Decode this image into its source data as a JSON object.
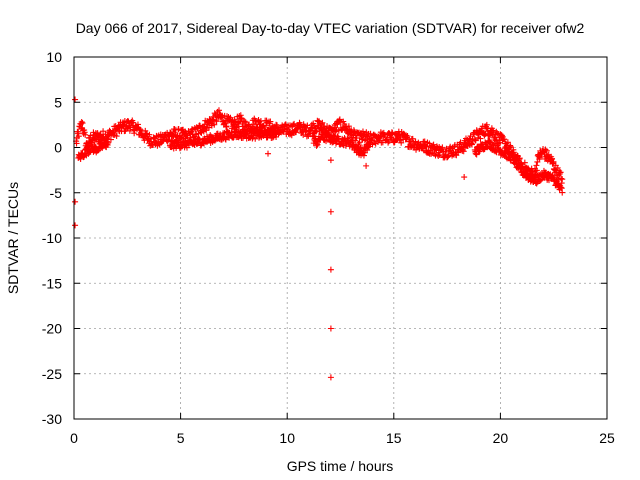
{
  "chart_data": {
    "type": "scatter",
    "title": "Day 066 of 2017, Sidereal Day-to-day VTEC variation (SDTVAR) for receiver ofw2",
    "xlabel": "GPS time / hours",
    "ylabel": "SDTVAR / TECUs",
    "xlim": [
      0,
      25
    ],
    "ylim": [
      -30,
      10
    ],
    "xticks": [
      "0",
      "5",
      "10",
      "15",
      "20",
      "25"
    ],
    "yticks": [
      "10",
      "5",
      "0",
      "-5",
      "-10",
      "-15",
      "-20",
      "-25",
      "-30"
    ],
    "grid": true,
    "marker": "plus",
    "series_color": "#ff0000",
    "series": [
      {
        "name": "SDTVAR",
        "main_trace": [
          [
            0.1,
            0.5
          ],
          [
            0.2,
            1.5
          ],
          [
            0.3,
            2.2
          ],
          [
            0.4,
            2.6
          ],
          [
            0.5,
            1.2
          ],
          [
            0.6,
            0.2
          ],
          [
            0.7,
            0.5
          ],
          [
            0.8,
            1.0
          ],
          [
            1.0,
            1.1
          ],
          [
            1.3,
            1.2
          ],
          [
            1.6,
            1.3
          ],
          [
            2.0,
            1.9
          ],
          [
            2.3,
            2.3
          ],
          [
            2.6,
            2.5
          ],
          [
            3.0,
            2.0
          ],
          [
            3.3,
            1.3
          ],
          [
            3.6,
            0.8
          ],
          [
            4.0,
            0.7
          ],
          [
            4.3,
            1.2
          ],
          [
            4.6,
            1.5
          ],
          [
            5.0,
            1.4
          ],
          [
            5.3,
            1.2
          ],
          [
            5.6,
            1.5
          ],
          [
            6.0,
            2.2
          ],
          [
            6.4,
            2.8
          ],
          [
            6.8,
            3.5
          ],
          [
            7.2,
            2.8
          ],
          [
            7.5,
            2.5
          ],
          [
            7.8,
            3.0
          ],
          [
            8.1,
            2.2
          ],
          [
            8.5,
            2.7
          ],
          [
            8.9,
            2.5
          ],
          [
            9.3,
            2.2
          ],
          [
            9.7,
            1.8
          ],
          [
            10.0,
            2.0
          ],
          [
            10.3,
            2.0
          ],
          [
            10.6,
            2.2
          ],
          [
            10.9,
            1.8
          ],
          [
            11.2,
            2.2
          ],
          [
            11.5,
            2.4
          ],
          [
            11.8,
            2.0
          ],
          [
            12.1,
            1.6
          ],
          [
            12.4,
            2.5
          ],
          [
            12.7,
            2.3
          ],
          [
            13.0,
            1.5
          ],
          [
            13.3,
            1.0
          ],
          [
            13.6,
            1.2
          ],
          [
            14.0,
            0.8
          ],
          [
            14.3,
            1.2
          ],
          [
            14.6,
            1.0
          ],
          [
            15.0,
            1.1
          ],
          [
            15.3,
            1.2
          ],
          [
            15.6,
            0.8
          ],
          [
            16.0,
            0.4
          ],
          [
            16.3,
            0.2
          ],
          [
            16.6,
            0.0
          ],
          [
            17.0,
            -0.3
          ],
          [
            17.3,
            -0.5
          ],
          [
            17.6,
            -0.4
          ],
          [
            18.0,
            -0.2
          ],
          [
            18.3,
            0.2
          ],
          [
            18.6,
            0.8
          ],
          [
            19.0,
            1.5
          ],
          [
            19.3,
            2.0
          ],
          [
            19.6,
            1.8
          ],
          [
            19.9,
            1.0
          ],
          [
            20.2,
            0.5
          ],
          [
            20.5,
            -0.5
          ],
          [
            20.8,
            -1.5
          ],
          [
            21.1,
            -2.2
          ],
          [
            21.4,
            -2.8
          ],
          [
            21.6,
            -3.0
          ],
          [
            21.8,
            -1.0
          ],
          [
            22.0,
            -0.5
          ],
          [
            22.2,
            -1.0
          ],
          [
            22.4,
            -1.5
          ],
          [
            22.6,
            -2.5
          ],
          [
            22.8,
            -3.2
          ],
          [
            22.9,
            -3.5
          ]
        ],
        "lower_trace": [
          [
            0.2,
            -1.2
          ],
          [
            0.4,
            -0.8
          ],
          [
            0.6,
            -0.4
          ],
          [
            0.8,
            0.0
          ],
          [
            1.0,
            -0.2
          ],
          [
            1.3,
            0.1
          ],
          [
            1.6,
            0.5
          ],
          [
            11.2,
            1.0
          ],
          [
            11.4,
            0.5
          ],
          [
            11.6,
            1.2
          ],
          [
            13.0,
            0.5
          ],
          [
            13.3,
            -0.3
          ],
          [
            13.6,
            -0.5
          ],
          [
            13.9,
            0.5
          ],
          [
            18.8,
            -0.5
          ],
          [
            19.1,
            0.0
          ],
          [
            19.4,
            0.5
          ],
          [
            20.6,
            -1.2
          ],
          [
            20.8,
            -2.0
          ],
          [
            21.0,
            -2.6
          ],
          [
            21.4,
            -3.4
          ],
          [
            21.7,
            -3.6
          ],
          [
            22.0,
            -3.0
          ],
          [
            22.3,
            -3.2
          ],
          [
            22.6,
            -3.8
          ],
          [
            22.8,
            -4.6
          ],
          [
            22.9,
            -4.8
          ],
          [
            4.5,
            0.3
          ],
          [
            5.5,
            0.4
          ],
          [
            6.5,
            1.0
          ],
          [
            7.5,
            1.5
          ],
          [
            8.5,
            1.4
          ],
          [
            9.5,
            1.5
          ]
        ],
        "outliers": [
          [
            12.05,
            -1.4
          ],
          [
            12.05,
            -7.1
          ],
          [
            12.05,
            -13.5
          ],
          [
            12.05,
            -20.0
          ],
          [
            12.05,
            -25.4
          ],
          [
            0.05,
            5.3
          ],
          [
            0.05,
            -6.0
          ],
          [
            0.05,
            -8.6
          ]
        ]
      }
    ]
  }
}
